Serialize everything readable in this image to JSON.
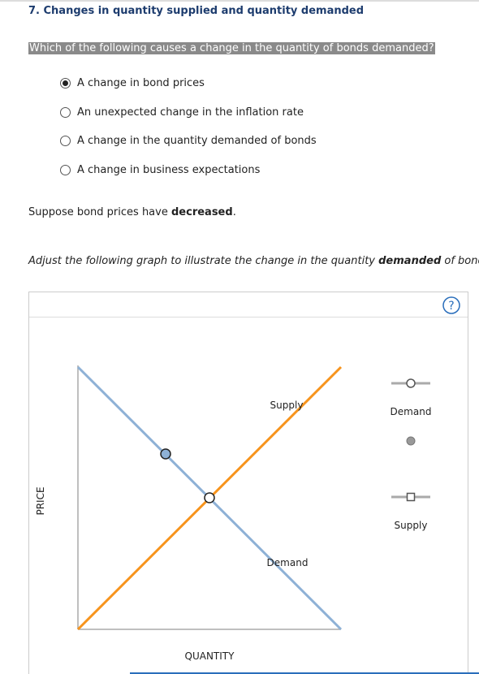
{
  "header": {
    "title": "7. Changes in quantity supplied and quantity demanded"
  },
  "question": {
    "text": "Which of the following causes a change in the quantity of bonds demanded?",
    "options": [
      "A change in bond prices",
      "An unexpected change in the inflation rate",
      "A change in the quantity demanded of bonds",
      "A change in business expectations"
    ],
    "selected": 0
  },
  "scenario": {
    "before": "Suppose bond prices have ",
    "emphasis": "decreased",
    "after": "."
  },
  "instruction": {
    "before": "Adjust the following graph to illustrate the change in the quantity ",
    "emphasis": "demanded",
    "after": " of bonds."
  },
  "graph": {
    "help": "?",
    "y_axis_label": "PRICE",
    "x_axis_label": "QUANTITY",
    "curve_labels": {
      "supply": "Supply",
      "demand": "Demand"
    },
    "legend": [
      {
        "label": "Demand"
      },
      {
        "label": "Supply"
      }
    ]
  }
}
